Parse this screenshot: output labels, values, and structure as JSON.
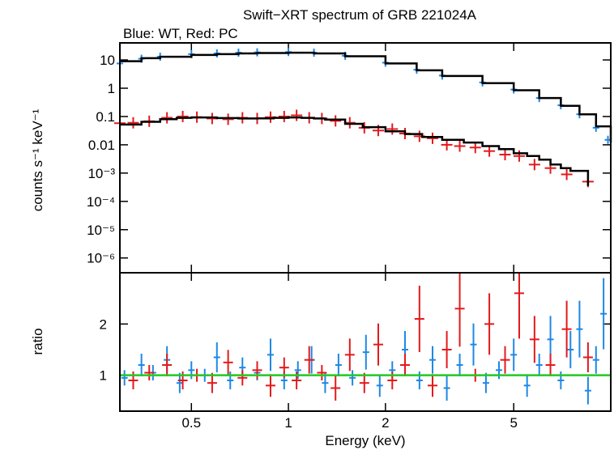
{
  "colors": {
    "wt": "#1e88e5",
    "pc": "#e31a1c",
    "model": "#000000",
    "unity": "#22c822",
    "axis": "#000000"
  },
  "chart_data": [
    {
      "type": "scatter",
      "title": "Swift−XRT spectrum of GRB 221024A",
      "subtitle": "Blue: WT, Red: PC",
      "ylabel": "counts s⁻¹ keV⁻¹",
      "xlabel": "",
      "xscale": "log",
      "yscale": "log",
      "xlim": [
        0.3,
        10.0
      ],
      "ylim": [
        3e-07,
        40
      ],
      "yticks": [
        {
          "value": 10,
          "label": "10"
        },
        {
          "value": 1,
          "label": "1"
        },
        {
          "value": 0.1,
          "label": "0.1"
        },
        {
          "value": 0.01,
          "label": "0.01"
        },
        {
          "value": 0.001,
          "label": "10⁻³"
        },
        {
          "value": 0.0001,
          "label": "10⁻⁴"
        },
        {
          "value": 1e-05,
          "label": "10⁻⁵"
        },
        {
          "value": 1e-06,
          "label": "10⁻⁶"
        }
      ],
      "series": [
        {
          "key": "wt",
          "x": [
            0.3,
            0.35,
            0.4,
            0.5,
            0.6,
            0.7,
            0.8,
            1.0,
            1.2,
            1.5,
            2.0,
            2.5,
            3.0,
            4.0,
            5.0,
            6.0,
            7.0,
            8.0,
            9.0,
            9.8
          ],
          "y": [
            7.5,
            11,
            13,
            16,
            17,
            18,
            18.5,
            19,
            18,
            14,
            8,
            4.5,
            2.8,
            1.6,
            0.9,
            0.45,
            0.25,
            0.12,
            0.04,
            0.015
          ]
        },
        {
          "key": "pc",
          "x": [
            0.3,
            0.33,
            0.37,
            0.42,
            0.47,
            0.52,
            0.58,
            0.65,
            0.72,
            0.8,
            0.88,
            0.97,
            1.06,
            1.16,
            1.27,
            1.4,
            1.55,
            1.72,
            1.9,
            2.1,
            2.3,
            2.55,
            2.8,
            3.1,
            3.4,
            3.8,
            4.2,
            4.7,
            5.2,
            5.8,
            6.5,
            7.3,
            8.5
          ],
          "y": [
            0.058,
            0.06,
            0.068,
            0.09,
            0.1,
            0.095,
            0.085,
            0.08,
            0.09,
            0.085,
            0.095,
            0.1,
            0.11,
            0.09,
            0.085,
            0.07,
            0.06,
            0.04,
            0.032,
            0.036,
            0.025,
            0.02,
            0.017,
            0.01,
            0.009,
            0.008,
            0.006,
            0.0045,
            0.004,
            0.002,
            0.0015,
            0.0009,
            0.0005
          ]
        }
      ],
      "models": [
        {
          "key": "wt",
          "x": [
            0.3,
            0.35,
            0.4,
            0.5,
            0.6,
            0.7,
            0.8,
            1.0,
            1.2,
            1.5,
            2.0,
            2.5,
            3.0,
            4.0,
            5.0,
            6.0,
            7.0,
            8.0,
            9.0,
            10.0
          ],
          "y": [
            9,
            11.5,
            13,
            15,
            16,
            17,
            17.5,
            18,
            17,
            13.5,
            7.5,
            4.3,
            2.7,
            1.5,
            0.85,
            0.45,
            0.24,
            0.12,
            0.045,
            0.012
          ]
        },
        {
          "key": "pc",
          "x": [
            0.3,
            0.35,
            0.4,
            0.45,
            0.5,
            0.6,
            0.7,
            0.8,
            0.9,
            1.0,
            1.1,
            1.2,
            1.3,
            1.5,
            1.7,
            2.0,
            2.3,
            2.6,
            3.0,
            3.5,
            4.0,
            4.5,
            5.0,
            5.5,
            6.0,
            6.5,
            7.0,
            7.5,
            8.5
          ],
          "y": [
            0.052,
            0.065,
            0.08,
            0.09,
            0.093,
            0.088,
            0.085,
            0.086,
            0.09,
            0.093,
            0.09,
            0.085,
            0.078,
            0.055,
            0.042,
            0.03,
            0.024,
            0.019,
            0.015,
            0.012,
            0.009,
            0.007,
            0.005,
            0.004,
            0.003,
            0.002,
            0.0015,
            0.0012,
            0.00035
          ]
        }
      ]
    },
    {
      "type": "scatter",
      "title": "",
      "ylabel": "ratio",
      "xlabel": "Energy (keV)",
      "xscale": "log",
      "xlim": [
        0.3,
        10.0
      ],
      "ylim": [
        0.3,
        3.0
      ],
      "yticks": [
        {
          "value": 1,
          "label": "1"
        },
        {
          "value": 2,
          "label": "2"
        }
      ],
      "xticks": [
        {
          "value": 0.5,
          "label": "0.5"
        },
        {
          "value": 1,
          "label": "1"
        },
        {
          "value": 2,
          "label": "2"
        },
        {
          "value": 5,
          "label": "5"
        }
      ],
      "reference_line": 1.0,
      "series": [
        {
          "key": "wt",
          "x": [
            0.31,
            0.35,
            0.38,
            0.42,
            0.46,
            0.5,
            0.55,
            0.6,
            0.66,
            0.72,
            0.8,
            0.88,
            0.97,
            1.07,
            1.18,
            1.3,
            1.43,
            1.58,
            1.74,
            1.92,
            2.1,
            2.3,
            2.55,
            2.8,
            3.1,
            3.4,
            3.75,
            4.1,
            4.5,
            5.0,
            5.5,
            6.0,
            6.5,
            7.0,
            7.5,
            8.0,
            8.5,
            9.0,
            9.5
          ],
          "y": [
            0.95,
            1.2,
            1.05,
            1.3,
            0.85,
            1.1,
            1.0,
            1.35,
            0.9,
            1.15,
            1.05,
            1.4,
            0.9,
            1.1,
            1.3,
            0.85,
            1.2,
            0.95,
            1.45,
            0.8,
            1.1,
            1.5,
            0.9,
            1.3,
            0.75,
            1.2,
            1.6,
            0.85,
            1.1,
            1.4,
            0.8,
            1.2,
            1.7,
            0.9,
            1.5,
            1.9,
            0.7,
            1.3,
            2.2
          ]
        },
        {
          "key": "pc",
          "x": [
            0.33,
            0.37,
            0.42,
            0.47,
            0.52,
            0.58,
            0.65,
            0.72,
            0.8,
            0.88,
            0.97,
            1.06,
            1.16,
            1.27,
            1.4,
            1.55,
            1.72,
            1.9,
            2.1,
            2.3,
            2.55,
            2.8,
            3.1,
            3.4,
            3.8,
            4.2,
            4.7,
            5.2,
            5.8,
            6.5,
            7.3,
            8.5
          ],
          "y": [
            0.9,
            1.05,
            1.2,
            0.9,
            1.0,
            0.85,
            1.25,
            0.95,
            1.1,
            0.8,
            1.15,
            0.9,
            1.3,
            1.05,
            0.75,
            1.4,
            0.85,
            1.6,
            0.9,
            1.2,
            2.1,
            0.8,
            1.5,
            2.3,
            1.0,
            2.0,
            1.3,
            2.6,
            1.7,
            1.2,
            1.9,
            1.35
          ]
        }
      ]
    }
  ]
}
